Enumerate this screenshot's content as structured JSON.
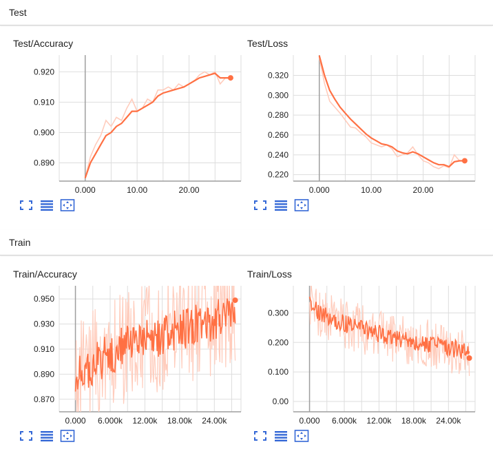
{
  "colors": {
    "accent": "#ff7043",
    "light": "#ffccbc",
    "grid": "#dddddd",
    "axis": "#9e9e9e",
    "icon": "#3367d6"
  },
  "icons": {
    "fullscreen": "fullscreen-icon",
    "log_scale": "log-scale-icon",
    "fit_domain": "fit-domain-icon"
  },
  "sections": [
    {
      "title": "Test"
    },
    {
      "title": "Train"
    }
  ],
  "chart_data": [
    {
      "type": "line",
      "title": "Test/Accuracy",
      "xlim": [
        -5,
        30
      ],
      "ylim": [
        0.884,
        0.9255
      ],
      "xticks": [
        0,
        10,
        20
      ],
      "xtick_labels": [
        "0.000",
        "10.00",
        "20.00"
      ],
      "yticks": [
        0.89,
        0.9,
        0.91,
        0.92
      ],
      "ytick_labels": [
        "0.890",
        "0.900",
        "0.910",
        "0.920"
      ],
      "series": [
        {
          "x": [
            0,
            1,
            2,
            3,
            4,
            5,
            6,
            7,
            8,
            9,
            10,
            11,
            12,
            13,
            14,
            15,
            16,
            17,
            18,
            19,
            20,
            21,
            22,
            23,
            24,
            25,
            26,
            27,
            28
          ],
          "raw": [
            0.885,
            0.892,
            0.896,
            0.899,
            0.904,
            0.902,
            0.905,
            0.904,
            0.908,
            0.911,
            0.907,
            0.908,
            0.911,
            0.91,
            0.914,
            0.914,
            0.915,
            0.914,
            0.916,
            0.915,
            0.916,
            0.917,
            0.919,
            0.92,
            0.919,
            0.92,
            0.916,
            0.918,
            0.918
          ],
          "smoothed": [
            0.885,
            0.89,
            0.893,
            0.896,
            0.899,
            0.9,
            0.902,
            0.903,
            0.905,
            0.907,
            0.907,
            0.908,
            0.909,
            0.91,
            0.912,
            0.913,
            0.9135,
            0.914,
            0.9145,
            0.915,
            0.916,
            0.917,
            0.918,
            0.9185,
            0.919,
            0.9195,
            0.918,
            0.918,
            0.918
          ]
        }
      ]
    },
    {
      "type": "line",
      "title": "Test/Loss",
      "xlim": [
        -5,
        30
      ],
      "ylim": [
        0.2135,
        0.3405
      ],
      "xticks": [
        0,
        10,
        20
      ],
      "xtick_labels": [
        "0.000",
        "10.00",
        "20.00"
      ],
      "yticks": [
        0.22,
        0.24,
        0.26,
        0.28,
        0.3,
        0.32
      ],
      "ytick_labels": [
        "0.220",
        "0.240",
        "0.260",
        "0.280",
        "0.300",
        "0.320"
      ],
      "series": [
        {
          "x": [
            0,
            1,
            2,
            3,
            4,
            5,
            6,
            7,
            8,
            9,
            10,
            11,
            12,
            13,
            14,
            15,
            16,
            17,
            18,
            19,
            20,
            21,
            22,
            23,
            24,
            25,
            26,
            27,
            28
          ],
          "raw": [
            0.338,
            0.312,
            0.294,
            0.288,
            0.282,
            0.275,
            0.268,
            0.267,
            0.262,
            0.258,
            0.252,
            0.25,
            0.248,
            0.25,
            0.246,
            0.238,
            0.24,
            0.242,
            0.248,
            0.24,
            0.234,
            0.232,
            0.228,
            0.226,
            0.229,
            0.227,
            0.24,
            0.234,
            0.234
          ],
          "smoothed": [
            0.34,
            0.32,
            0.305,
            0.296,
            0.288,
            0.282,
            0.276,
            0.271,
            0.266,
            0.261,
            0.257,
            0.254,
            0.251,
            0.25,
            0.248,
            0.244,
            0.242,
            0.241,
            0.243,
            0.241,
            0.238,
            0.235,
            0.232,
            0.23,
            0.23,
            0.228,
            0.233,
            0.234,
            0.234
          ]
        }
      ]
    },
    {
      "type": "line",
      "title": "Train/Accuracy",
      "xlim": [
        -2800,
        28600
      ],
      "ylim": [
        0.86,
        0.9605
      ],
      "xticks": [
        0,
        6000,
        12000,
        18000,
        24000
      ],
      "xtick_labels": [
        "0.000",
        "6.000k",
        "12.00k",
        "18.00k",
        "24.00k"
      ],
      "yticks": [
        0.87,
        0.89,
        0.91,
        0.93,
        0.95
      ],
      "ytick_labels": [
        "0.870",
        "0.890",
        "0.910",
        "0.930",
        "0.950"
      ],
      "trend": {
        "x0": 0,
        "x1": 27600,
        "y0": 0.88,
        "y1": 0.936,
        "shape": "sqrt",
        "raw_noise": 0.045,
        "smooth_noise": 0.017,
        "points": 220
      },
      "end_point": {
        "x": 27600,
        "y": 0.949
      }
    },
    {
      "type": "line",
      "title": "Train/Loss",
      "xlim": [
        -2800,
        28600
      ],
      "ylim": [
        -0.035,
        0.392
      ],
      "xticks": [
        0,
        6000,
        12000,
        18000,
        24000
      ],
      "xtick_labels": [
        "0.000",
        "6.000k",
        "12.00k",
        "18.00k",
        "24.00k"
      ],
      "yticks": [
        0,
        0.1,
        0.2,
        0.3
      ],
      "ytick_labels": [
        "0.00",
        "0.100",
        "0.200",
        "0.300"
      ],
      "trend": {
        "x0": 0,
        "x1": 27600,
        "y0": 0.345,
        "y1": 0.17,
        "shape": "sqrt",
        "raw_noise": 0.085,
        "smooth_noise": 0.03,
        "points": 220
      },
      "end_point": {
        "x": 27600,
        "y": 0.147
      }
    }
  ]
}
